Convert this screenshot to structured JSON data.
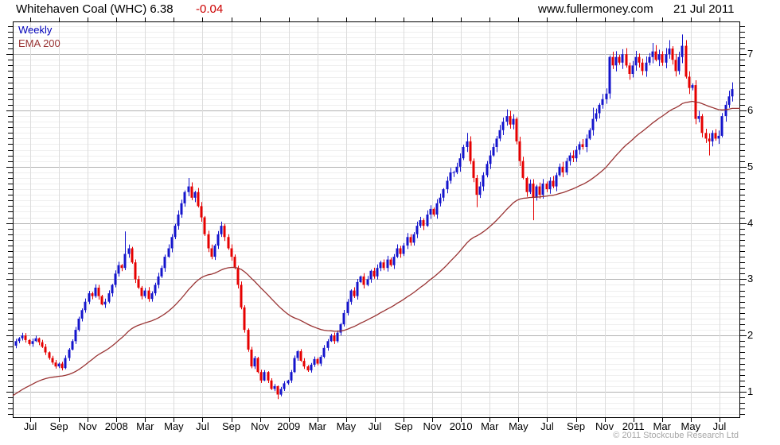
{
  "header": {
    "title": "Whitehaven Coal (WHC) 6.38",
    "change": "-0.04",
    "website": "www.fullermoney.com",
    "date": "21 Jul 2011"
  },
  "legend": {
    "timeframe": "Weekly",
    "overlay": "EMA 200"
  },
  "footer": {
    "copyright": "© 2011 Stockcube Research Ltd"
  },
  "chart_data": {
    "type": "candlestick",
    "title": "Whitehaven Coal (WHC) weekly candlestick chart with 200-day EMA",
    "x_tick_labels": [
      "Jul",
      "Sep",
      "Nov",
      "2008",
      "Mar",
      "May",
      "Jul",
      "Sep",
      "Nov",
      "2009",
      "Mar",
      "May",
      "Jul",
      "Sep",
      "Nov",
      "2010",
      "Mar",
      "May",
      "Jul",
      "Sep",
      "Nov",
      "2011",
      "Mar",
      "May",
      "Jul"
    ],
    "y_tick_labels": [
      7,
      6,
      5,
      4,
      3,
      2,
      1
    ],
    "ylim": [
      0.53,
      7.58
    ],
    "y_minor_step": 0.1,
    "axis_side": "right",
    "grid": true,
    "weeks": 217,
    "first_open": 1.82,
    "last_close": 6.38,
    "closes": [
      1.9,
      1.95,
      2.0,
      1.92,
      1.85,
      1.9,
      1.95,
      1.88,
      1.8,
      1.7,
      1.6,
      1.52,
      1.45,
      1.5,
      1.42,
      1.6,
      1.75,
      1.9,
      2.1,
      2.3,
      2.45,
      2.6,
      2.75,
      2.7,
      2.85,
      2.7,
      2.55,
      2.6,
      2.75,
      2.9,
      3.1,
      3.25,
      3.2,
      3.45,
      3.55,
      3.3,
      3.0,
      2.85,
      2.7,
      2.8,
      2.65,
      2.75,
      2.9,
      3.05,
      3.2,
      3.4,
      3.55,
      3.75,
      3.95,
      4.15,
      4.35,
      4.55,
      4.65,
      4.45,
      4.55,
      4.3,
      4.1,
      3.8,
      3.55,
      3.4,
      3.6,
      3.8,
      3.95,
      3.75,
      3.55,
      3.4,
      3.2,
      2.9,
      2.5,
      2.1,
      1.75,
      1.45,
      1.6,
      1.35,
      1.2,
      1.35,
      1.2,
      1.05,
      1.1,
      0.95,
      1.05,
      1.15,
      1.2,
      1.35,
      1.6,
      1.72,
      1.55,
      1.45,
      1.38,
      1.48,
      1.58,
      1.5,
      1.62,
      1.78,
      1.9,
      2.0,
      1.9,
      2.05,
      2.2,
      2.4,
      2.6,
      2.8,
      2.7,
      2.95,
      3.05,
      2.9,
      3.0,
      3.15,
      3.05,
      3.2,
      3.3,
      3.2,
      3.35,
      3.25,
      3.4,
      3.55,
      3.45,
      3.6,
      3.75,
      3.65,
      3.8,
      3.95,
      4.05,
      3.95,
      4.15,
      4.25,
      4.15,
      4.35,
      4.45,
      4.6,
      4.75,
      4.9,
      4.9,
      5.0,
      5.15,
      5.35,
      5.45,
      5.1,
      4.8,
      4.5,
      4.65,
      4.85,
      5.05,
      5.2,
      5.35,
      5.5,
      5.65,
      5.8,
      5.9,
      5.75,
      5.85,
      5.45,
      5.1,
      4.8,
      4.55,
      4.7,
      4.45,
      4.65,
      4.5,
      4.7,
      4.6,
      4.75,
      4.65,
      4.85,
      5.0,
      4.9,
      5.1,
      5.2,
      5.15,
      5.3,
      5.4,
      5.35,
      5.5,
      5.65,
      5.85,
      5.95,
      6.1,
      6.2,
      6.3,
      6.95,
      6.8,
      6.95,
      6.85,
      7.0,
      6.8,
      6.65,
      6.8,
      6.95,
      6.85,
      6.7,
      6.85,
      6.95,
      7.05,
      6.9,
      7.0,
      6.85,
      7.0,
      7.1,
      6.9,
      6.7,
      6.95,
      7.15,
      6.6,
      6.4,
      6.45,
      5.85,
      5.9,
      5.6,
      5.5,
      5.45,
      5.6,
      5.5,
      5.55,
      5.9,
      6.1,
      6.25,
      6.38
    ],
    "wick_overrides": {
      "14": {
        "low": 1.38
      },
      "33": {
        "high": 3.85
      },
      "52": {
        "high": 4.8
      },
      "79": {
        "low": 0.87
      },
      "136": {
        "high": 5.6
      },
      "139": {
        "low": 4.28
      },
      "148": {
        "high": 6.02
      },
      "156": {
        "low": 4.05
      },
      "174": {
        "high": 6.05
      },
      "192": {
        "high": 7.2
      },
      "197": {
        "high": 7.25
      },
      "201": {
        "high": 7.35
      },
      "209": {
        "low": 5.2
      },
      "216": {
        "high": 6.5
      }
    },
    "ema": {
      "label": "EMA 200",
      "alpha": 0.038,
      "seed": 0.93
    },
    "colors": {
      "up": "#1414cc",
      "down": "#e60000",
      "ema": "#993333",
      "legend_weekly": "#0000bb",
      "change_red": "#cc0000",
      "grid_minor": "#efefef",
      "grid_major": "#b2b2b2",
      "grid_vertical": "#dcdcdc",
      "axis": "#000000",
      "copyright_gray": "#a6a6a6"
    }
  }
}
